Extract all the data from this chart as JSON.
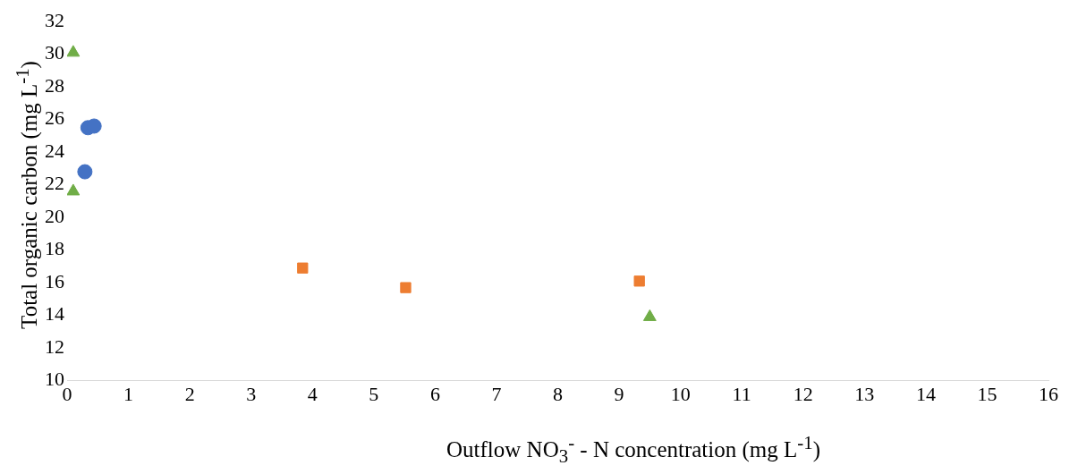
{
  "chart_data": {
    "type": "scatter",
    "xlabel": "Outflow NO$_{3}$$^{-}$ - N concentration (mg L$^{-1}$)",
    "ylabel": "Total organic carbon (mg L$^{-1}$)",
    "xlim": [
      0,
      16
    ],
    "xticks": [
      0,
      1,
      2,
      3,
      4,
      5,
      6,
      7,
      8,
      9,
      10,
      11,
      12,
      13,
      14,
      15,
      16
    ],
    "ylim": [
      10,
      32
    ],
    "yticks": [
      10,
      12,
      14,
      16,
      18,
      20,
      22,
      24,
      26,
      28,
      30,
      32
    ],
    "grid": false,
    "legend": false,
    "series": [
      {
        "color": "#4472c4",
        "marker": "circle",
        "x": [
          0.29,
          0.34,
          0.44
        ],
        "values": [
          22.8,
          25.5,
          25.6
        ]
      },
      {
        "color": "#ed7d31",
        "marker": "square",
        "x": [
          3.84,
          5.52,
          9.33
        ],
        "values": [
          16.9,
          15.7,
          16.1
        ]
      },
      {
        "color": "#70ad47",
        "marker": "triangle",
        "x": [
          0.1,
          0.1,
          9.5
        ],
        "values": [
          30.1,
          21.6,
          13.9
        ]
      }
    ]
  }
}
